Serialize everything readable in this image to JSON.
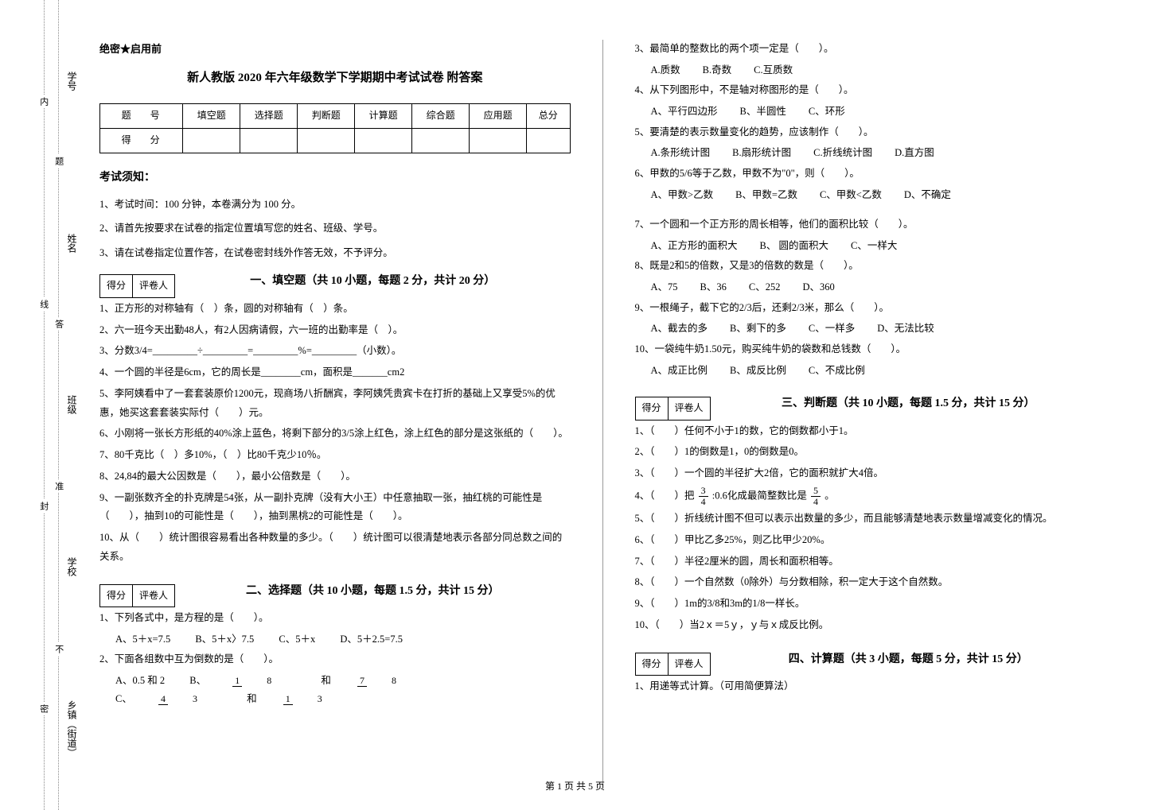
{
  "side": {
    "labels": [
      "学号",
      "姓名",
      "班级",
      "学校",
      "乡镇（街道）"
    ],
    "dotted": [
      "题",
      "答",
      "准",
      "不",
      "内",
      "线",
      "封",
      "密"
    ]
  },
  "secret": "绝密★启用前",
  "title": "新人教版 2020 年六年级数学下学期期中考试试卷 附答案",
  "scoreTable": {
    "row1": [
      "题　号",
      "填空题",
      "选择题",
      "判断题",
      "计算题",
      "综合题",
      "应用题",
      "总分"
    ],
    "row2label": "得　分"
  },
  "noticeTitle": "考试须知：",
  "notices": [
    "1、考试时间：100 分钟，本卷满分为 100 分。",
    "2、请首先按要求在试卷的指定位置填写您的姓名、班级、学号。",
    "3、请在试卷指定位置作答，在试卷密封线外作答无效，不予评分。"
  ],
  "grader": {
    "score": "得分",
    "person": "评卷人"
  },
  "sections": {
    "s1": "一、填空题（共 10 小题，每题 2 分，共计 20 分）",
    "s2": "二、选择题（共 10 小题，每题 1.5 分，共计 15 分）",
    "s3": "三、判断题（共 10 小题，每题 1.5 分，共计 15 分）",
    "s4": "四、计算题（共 3 小题，每题 5 分，共计 15 分）"
  },
  "fill": [
    "1、正方形的对称轴有（　）条，圆的对称轴有（　）条。",
    "2、六一班今天出勤48人，有2人因病请假，六一班的出勤率是（　）。",
    "3、分数3/4=_________÷_________=_________%=_________（小数）。",
    "4、一个圆的半径是6cm，它的周长是________cm，面积是_______cm2",
    "5、李阿姨看中了一套套装原价1200元，现商场八折酬宾，李阿姨凭贵宾卡在打折的基础上又享受5%的优惠，她买这套套装实际付（　　）元。",
    "6、小刚将一张长方形纸的40%涂上蓝色，将剩下部分的3/5涂上红色，涂上红色的部分是这张纸的（　　）。",
    "7、80千克比（　）多10%，（　）比80千克少10％。",
    "8、24,84的最大公因数是（　　），最小公倍数是（　　）。",
    "9、一副张数齐全的扑克牌是54张，从一副扑克牌（没有大小王）中任意抽取一张，抽红桃的可能性是（　　），抽到10的可能性是（　　），抽到黑桃2的可能性是（　　）。",
    "10、从（　　）统计图很容易看出各种数量的多少。（　　）统计图可以很清楚地表示各部分同总数之间的关系。"
  ],
  "choice_left": {
    "q1": "1、下列各式中，是方程的是（　　）。",
    "q1opts": [
      "A、5＋x=7.5",
      "B、5＋x〉7.5",
      "C、5＋x",
      "D、5＋2.5=7.5"
    ],
    "q2": "2、下面各组数中互为倒数的是（　　）。",
    "q2optA": "A、0.5 和 2",
    "q2optB_pre": "B、",
    "q2optB_and": " 和 ",
    "q2optC_pre": "C、",
    "q2optC_and": " 和 ",
    "frac_1_8": {
      "n": "1",
      "d": "8"
    },
    "frac_7_8": {
      "n": "7",
      "d": "8"
    },
    "frac_4_3": {
      "n": "4",
      "d": "3"
    },
    "frac_1_3": {
      "n": "1",
      "d": "3"
    }
  },
  "choice_right": [
    {
      "q": "3、最简单的整数比的两个项一定是（　　）。",
      "opts": [
        "A.质数",
        "B.奇数",
        "C.互质数"
      ]
    },
    {
      "q": "4、从下列图形中，不是轴对称图形的是（　　）。",
      "opts": [
        "A、平行四边形",
        "B、半圆性",
        "C、环形"
      ]
    },
    {
      "q": "5、要清楚的表示数量变化的趋势，应该制作（　　）。",
      "opts": [
        "A.条形统计图",
        "B.扇形统计图",
        "C.折线统计图",
        "D.直方图"
      ]
    },
    {
      "q": "6、甲数的5/6等于乙数，甲数不为\"0\"，则（　　）。",
      "opts": [
        "A、甲数>乙数",
        "B、甲数=乙数",
        "C、甲数<乙数",
        "D、不确定"
      ]
    },
    {
      "q": "7、一个圆和一个正方形的周长相等，他们的面积比较（　　）。",
      "opts": [
        "A、正方形的面积大",
        "B、 圆的面积大",
        "C、一样大"
      ]
    },
    {
      "q": "8、既是2和5的倍数，又是3的倍数的数是（　　）。",
      "opts": [
        "A、75",
        "B、36",
        "C、252",
        "D、360"
      ]
    },
    {
      "q": "9、一根绳子，截下它的2/3后，还剩2/3米，那么（　　）。",
      "opts": [
        "A、截去的多",
        "B、剩下的多",
        "C、一样多",
        "D、无法比较"
      ]
    },
    {
      "q": "10、一袋纯牛奶1.50元，购买纯牛奶的袋数和总钱数（　　）。",
      "opts": [
        "A、成正比例",
        "B、成反比例",
        "C、不成比例"
      ]
    }
  ],
  "judge": {
    "items": [
      "1、（　　）任何不小于1的数，它的倒数都小于1。",
      "2、（　　）1的倒数是1，0的倒数是0。",
      "3、（　　）一个圆的半径扩大2倍，它的面积就扩大4倍。"
    ],
    "q4_pre": "4、（　　）把 ",
    "q4_mid": " :0.6化成最简整数比是 ",
    "q4_suf": " 。",
    "frac_3_4": {
      "n": "3",
      "d": "4"
    },
    "frac_5_4": {
      "n": "5",
      "d": "4"
    },
    "items2": [
      "5、（　　）折线统计图不但可以表示出数量的多少，而且能够清楚地表示数量增减变化的情况。",
      "6、（　　）甲比乙多25%，则乙比甲少20%。",
      "7、（　　）半径2厘米的圆，周长和面积相等。",
      "8、（　　）一个自然数（0除外）与分数相除，积一定大于这个自然数。",
      "9、（　　）1m的3/8和3m的1/8一样长。",
      "10、（　　）当2ｘ＝5ｙ，ｙ与ｘ成反比例。"
    ]
  },
  "calc": {
    "q1": "1、用递等式计算。（可用简便算法）"
  },
  "footer": "第 1 页 共 5 页"
}
